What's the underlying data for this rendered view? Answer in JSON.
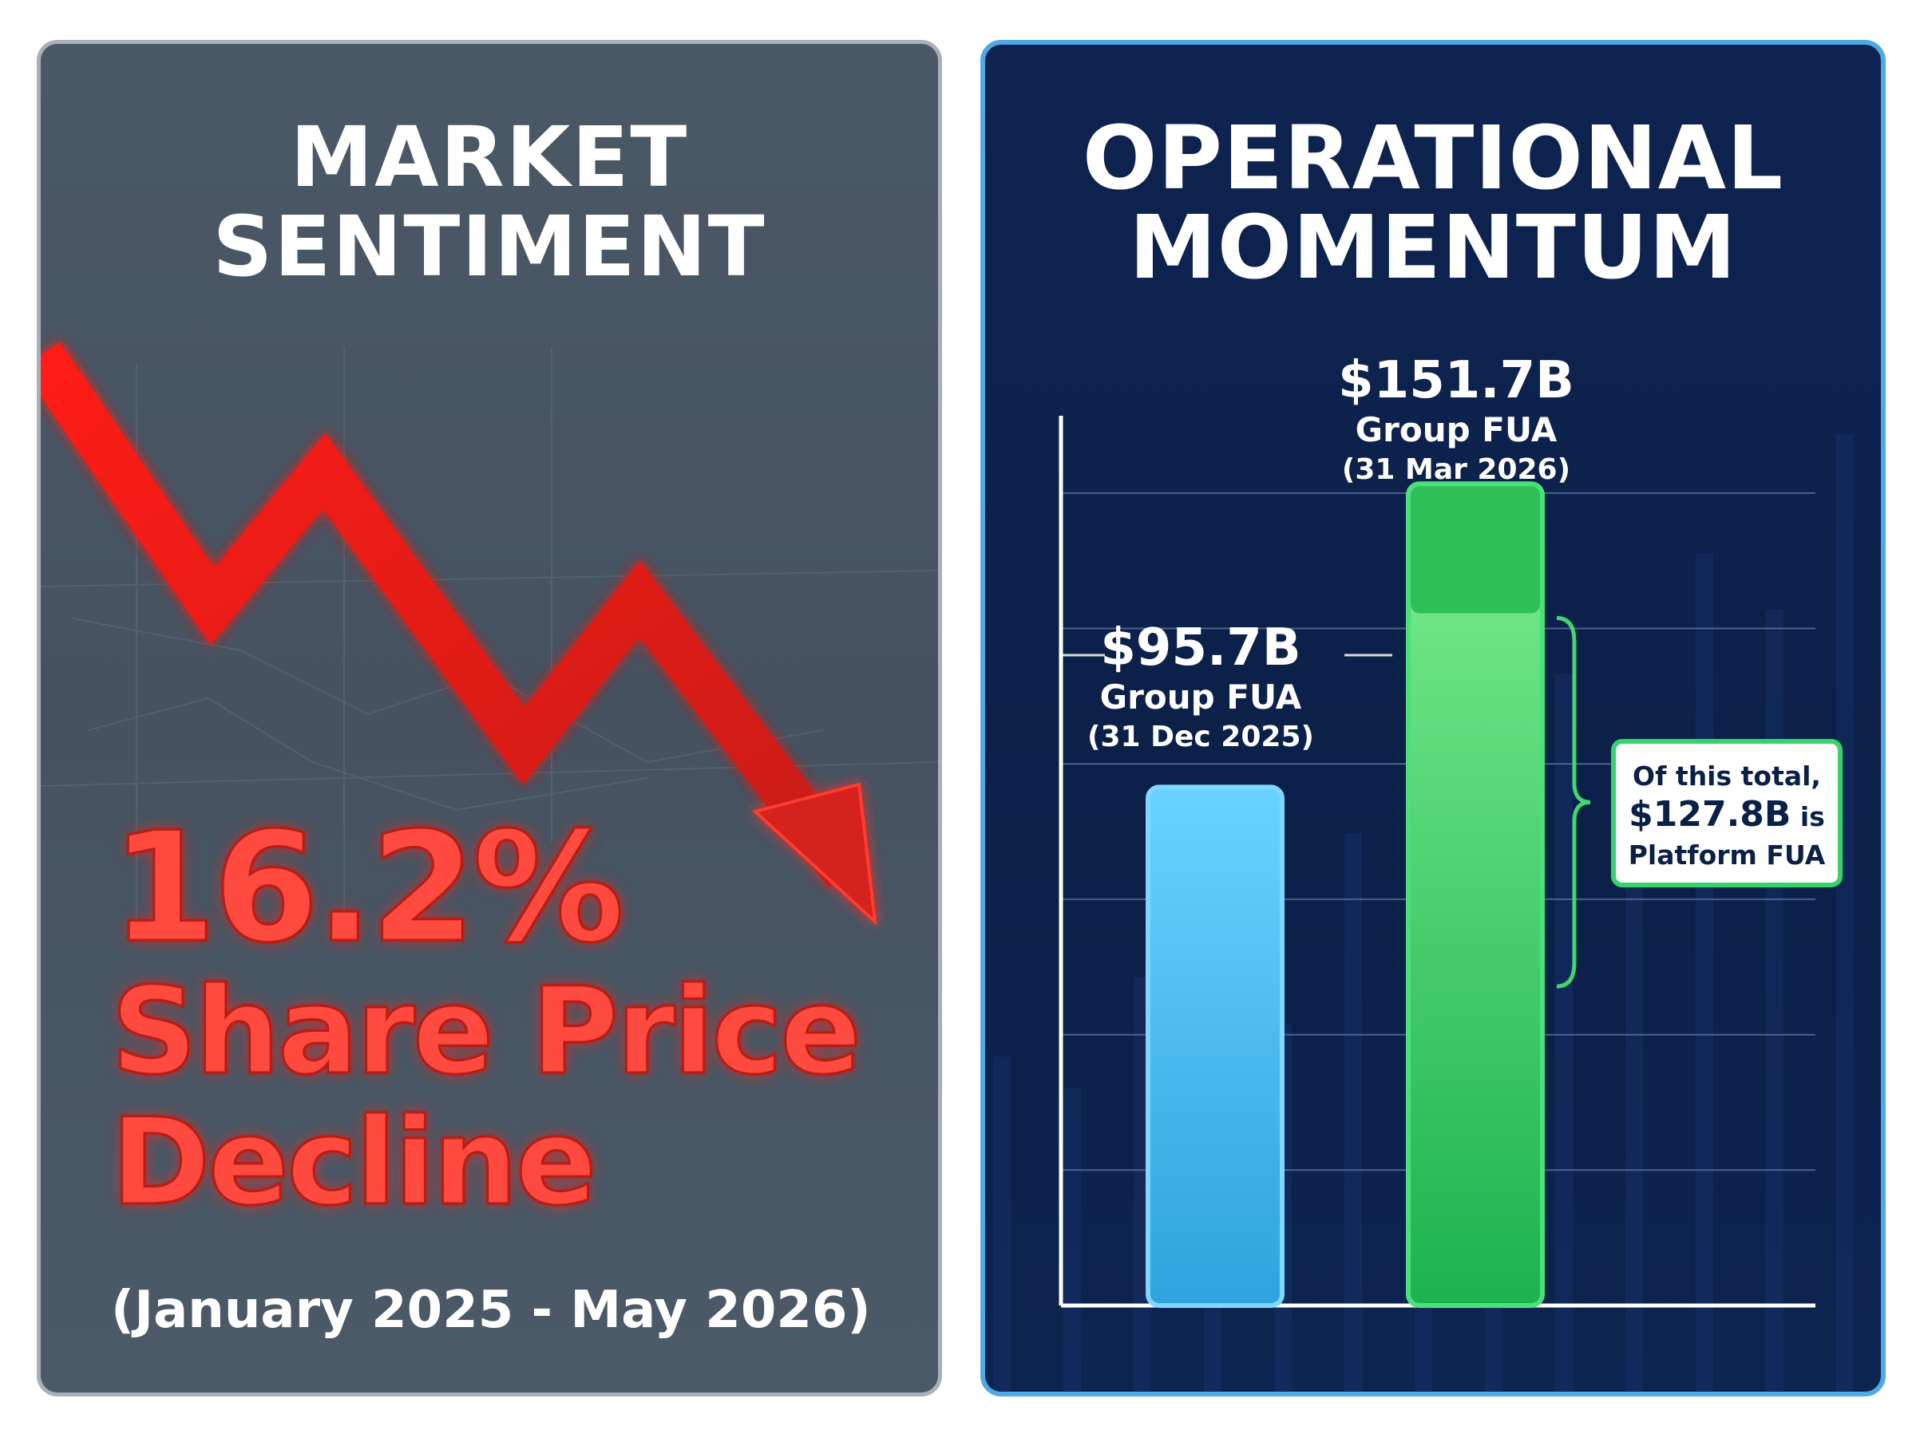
{
  "market_sentiment": {
    "title_line1": "MARKET",
    "title_line2": "SENTIMENT",
    "stat_value": "16.2%",
    "stat_line1": "Share Price",
    "stat_line2": "Decline",
    "period": "(January 2025 - May 2026)",
    "trend": "down",
    "arrow_color": "#e8231a",
    "text_color": "#ff4a40"
  },
  "operational_momentum": {
    "title_line1": "OPERATIONAL",
    "title_line2": "MOMENTUM",
    "callout_line1": "Of this total,",
    "callout_value": "$127.8B",
    "callout_suffix": " is",
    "callout_line3": "Platform FUA"
  },
  "chart_data": {
    "type": "bar",
    "categories": [
      "31 Dec 2025",
      "31 Mar 2026"
    ],
    "series": [
      {
        "values": [
          95.7,
          151.7
        ]
      }
    ],
    "bars": [
      {
        "value_label": "$95.7B",
        "name": "Group FUA",
        "date": "(31 Dec 2025)",
        "value": 95.7,
        "color": "#4cc3f3"
      },
      {
        "value_label": "$151.7B",
        "name": "Group FUA",
        "date": "(31 Mar 2026)",
        "value": 151.7,
        "color": "#34c85d",
        "platform_portion": 127.8
      }
    ],
    "ylim": [
      0,
      165
    ],
    "grid": true,
    "legend": "none"
  }
}
